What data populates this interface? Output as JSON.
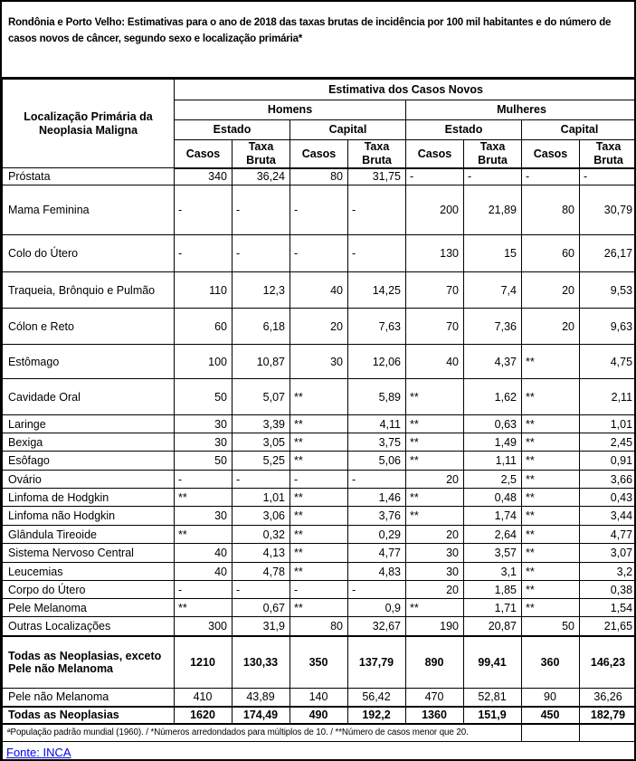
{
  "title": "Rondônia e Porto Velho: Estimativas para o ano de 2018 das taxas brutas de incidência por 100 mil habitantes e do número de casos novos de câncer, segundo sexo e localização primária*",
  "colors": {
    "link": "#0000EE"
  },
  "table": {
    "corner_header": "Localização Primária da Neoplasia Maligna",
    "top_header": "Estimativa dos Casos Novos",
    "sex_headers": [
      "Homens",
      "Mulheres"
    ],
    "region_headers": [
      "Estado",
      "Capital",
      "Estado",
      "Capital"
    ],
    "metric_headers": [
      "Casos",
      "Taxa Bruta",
      "Casos",
      "Taxa Bruta",
      "Casos",
      "Taxa Bruta",
      "Casos",
      "Taxa Bruta"
    ],
    "rows": [
      {
        "label": "Próstata",
        "values": [
          "340",
          "36,24",
          "80",
          "31,75",
          "-",
          "-",
          "-",
          "-"
        ]
      },
      {
        "label": "Mama Feminina",
        "values": [
          "-",
          "-",
          "-",
          "-",
          "200",
          "21,89",
          "80",
          "30,79"
        ]
      },
      {
        "label": "Colo do Útero",
        "values": [
          "-",
          "-",
          "-",
          "-",
          "130",
          "15",
          "60",
          "26,17"
        ]
      },
      {
        "label": "Traqueia, Brônquio e Pulmão",
        "values": [
          "110",
          "12,3",
          "40",
          "14,25",
          "70",
          "7,4",
          "20",
          "9,53"
        ]
      },
      {
        "label": "Cólon e Reto",
        "values": [
          "60",
          "6,18",
          "20",
          "7,63",
          "70",
          "7,36",
          "20",
          "9,63"
        ]
      },
      {
        "label": "Estômago",
        "values": [
          "100",
          "10,87",
          "30",
          "12,06",
          "40",
          "4,37",
          "**",
          "4,75"
        ]
      },
      {
        "label": "Cavidade Oral",
        "values": [
          "50",
          "5,07",
          "**",
          "5,89",
          "**",
          "1,62",
          "**",
          "2,11"
        ]
      },
      {
        "label": "Laringe",
        "values": [
          "30",
          "3,39",
          "**",
          "4,11",
          "**",
          "0,63",
          "**",
          "1,01"
        ]
      },
      {
        "label": "Bexiga",
        "values": [
          "30",
          "3,05",
          "**",
          "3,75",
          "**",
          "1,49",
          "**",
          "2,45"
        ]
      },
      {
        "label": "Esôfago",
        "values": [
          "50",
          "5,25",
          "**",
          "5,06",
          "**",
          "1,11",
          "**",
          "0,91"
        ]
      },
      {
        "label": "Ovário",
        "values": [
          "-",
          "-",
          "-",
          "-",
          "20",
          "2,5",
          "**",
          "3,66"
        ]
      },
      {
        "label": "Linfoma de Hodgkin",
        "values": [
          "**",
          "1,01",
          "**",
          "1,46",
          "**",
          "0,48",
          "**",
          "0,43"
        ]
      },
      {
        "label": "Linfoma não Hodgkin",
        "values": [
          "30",
          "3,06",
          "**",
          "3,76",
          "**",
          "1,74",
          "**",
          "3,44"
        ]
      },
      {
        "label": "Glândula Tireoide",
        "values": [
          "**",
          "0,32",
          "**",
          "0,29",
          "20",
          "2,64",
          "**",
          "4,77"
        ]
      },
      {
        "label": "Sistema Nervoso Central",
        "values": [
          "40",
          "4,13",
          "**",
          "4,77",
          "30",
          "3,57",
          "**",
          "3,07"
        ]
      },
      {
        "label": "Leucemias",
        "values": [
          "40",
          "4,78",
          "**",
          "4,83",
          "30",
          "3,1",
          "**",
          "3,2"
        ]
      },
      {
        "label": "Corpo do Útero",
        "values": [
          "-",
          "-",
          "-",
          "-",
          "20",
          "1,85",
          "**",
          "0,38"
        ]
      },
      {
        "label": "Pele Melanoma",
        "values": [
          "**",
          "0,67",
          "**",
          "0,9",
          "**",
          "1,71",
          "**",
          "1,54"
        ]
      },
      {
        "label": "Outras Localizações",
        "values": [
          "300",
          "31,9",
          "80",
          "32,67",
          "190",
          "20,87",
          "50",
          "21,65"
        ]
      },
      {
        "label": "Todas as Neoplasias, exceto Pele não Melanoma",
        "bold": true,
        "center": true,
        "values": [
          "1210",
          "130,33",
          "350",
          "137,79",
          "890",
          "99,41",
          "360",
          "146,23"
        ]
      },
      {
        "label": "Pele não Melanoma",
        "center": true,
        "values": [
          "410",
          "43,89",
          "140",
          "56,42",
          "470",
          "52,81",
          "90",
          "36,26"
        ]
      },
      {
        "label": "Todas as Neoplasias",
        "bold": true,
        "center": true,
        "values": [
          "1620",
          "174,49",
          "490",
          "192,2",
          "1360",
          "151,9",
          "450",
          "182,79"
        ]
      }
    ]
  },
  "footnote": "ªPopulação padrão mundial (1960). / *Números arredondados para múltiplos de 10. / **Número de casos menor que 20.",
  "source_link": "Fonte: INCA"
}
